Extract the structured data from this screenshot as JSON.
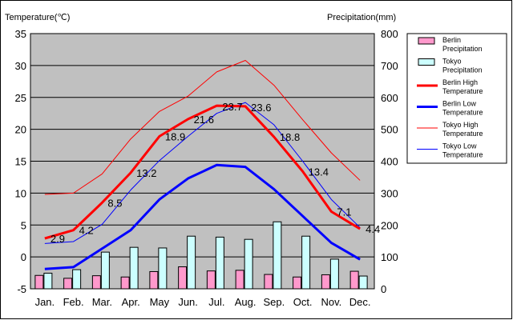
{
  "chart_data": {
    "type": "bar+line",
    "title": "",
    "left_axis_label": "Temperature(℃)",
    "right_axis_label": "Precipitation(mm)",
    "categories": [
      "Jan.",
      "Feb.",
      "Mar.",
      "Apr.",
      "May",
      "Jun.",
      "Jul.",
      "Aug.",
      "Sep.",
      "Oct.",
      "Nov.",
      "Dec."
    ],
    "left_ylim": [
      -5,
      35
    ],
    "left_ticks": [
      35,
      30,
      25,
      20,
      15,
      10,
      5,
      0,
      -5
    ],
    "right_ylim": [
      0,
      800
    ],
    "right_ticks": [
      800,
      700,
      600,
      500,
      400,
      300,
      200,
      100,
      0
    ],
    "bar_series": [
      {
        "name": "Berlin Precipitation",
        "legend_lines": [
          "Berlin",
          "Precipitation"
        ],
        "color": "#ff99cc",
        "values": [
          42,
          33,
          41,
          37,
          54,
          69,
          56,
          58,
          45,
          37,
          44,
          55
        ]
      },
      {
        "name": "Tokyo Precipitation",
        "legend_lines": [
          "Tokyo",
          "Precipitation"
        ],
        "color": "#ccffff",
        "values": [
          49,
          60,
          115,
          130,
          128,
          165,
          162,
          155,
          210,
          165,
          93,
          40
        ]
      }
    ],
    "line_series": [
      {
        "name": "Berlin High Temperature",
        "legend_lines": [
          "Berlin High",
          "Temperature"
        ],
        "color": "#ff0000",
        "width": 3,
        "values": [
          2.9,
          4.2,
          8.5,
          13.2,
          18.9,
          21.6,
          23.7,
          23.6,
          18.8,
          13.4,
          7.1,
          4.4
        ]
      },
      {
        "name": "Berlin Low Temperature",
        "legend_lines": [
          "Berlin Low",
          "Temperature"
        ],
        "color": "#0000ff",
        "width": 3,
        "values": [
          -1.9,
          -1.6,
          1.3,
          4.2,
          9.0,
          12.3,
          14.4,
          14.1,
          10.6,
          6.4,
          2.2,
          -0.4
        ]
      },
      {
        "name": "Tokyo High Temperature",
        "legend_lines": [
          "Tokyo High",
          "Temperature"
        ],
        "color": "#ff0000",
        "width": 1,
        "values": [
          9.8,
          10.0,
          13.0,
          18.5,
          22.8,
          25.2,
          29.0,
          30.8,
          26.9,
          21.5,
          16.3,
          12.0
        ]
      },
      {
        "name": "Tokyo Low Temperature",
        "legend_lines": [
          "Tokyo Low",
          "Temperature"
        ],
        "color": "#0000ff",
        "width": 1,
        "values": [
          2.1,
          2.4,
          5.1,
          10.5,
          15.1,
          18.9,
          22.5,
          24.2,
          20.7,
          15.0,
          9.0,
          4.6
        ]
      }
    ],
    "data_labels": {
      "series": "Berlin High Temperature",
      "texts": [
        "2.9",
        "4.2",
        "8.5",
        "13.2",
        "18.9",
        "21.6",
        "23.7",
        "23.6",
        "18.8",
        "13.4",
        "7.1",
        "4.4"
      ]
    },
    "grid": true,
    "legend_position": "right"
  }
}
